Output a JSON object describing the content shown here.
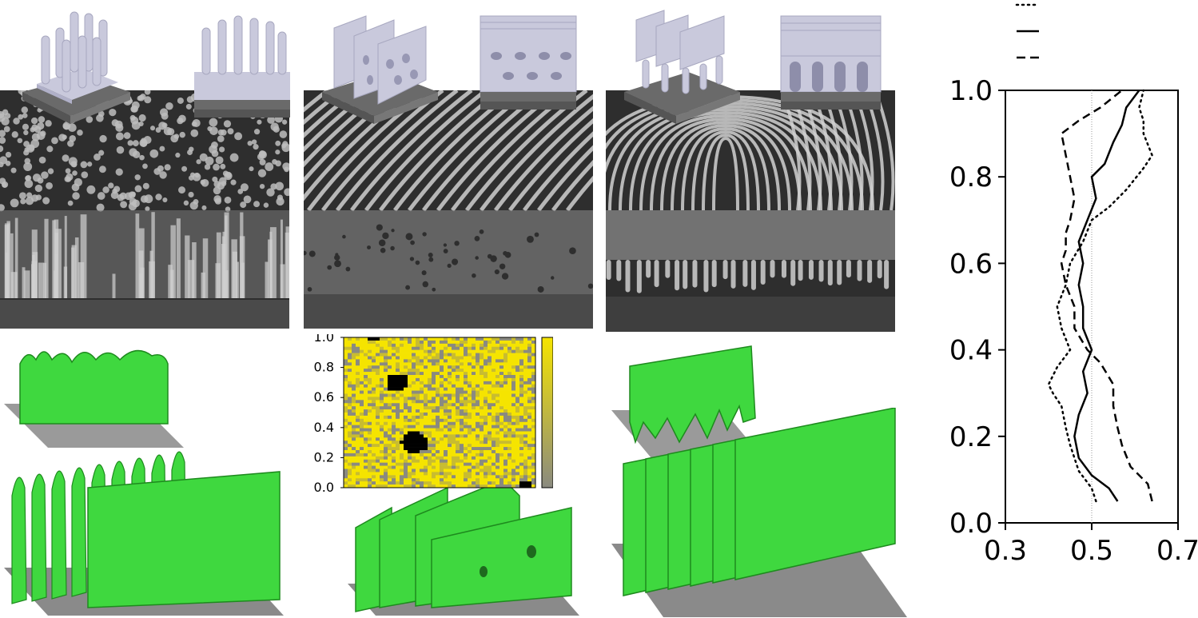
{
  "figure": {
    "panels": [
      {
        "name": "cylinders",
        "sem_texture": "dots"
      },
      {
        "name": "perforated-lamellae",
        "sem_texture": "stripes"
      },
      {
        "name": "lamellae-on-cylinders",
        "sem_texture": "fingerprint"
      }
    ],
    "colors": {
      "model_face": "#c9c9dc",
      "model_side": "#aeaec8",
      "substrate": "#6a6a6a",
      "sem_bg": "#303030",
      "sem_feature": "#c8c8c8",
      "sim_green": "#3fd83f",
      "heat_yellow": "#f5e400",
      "heat_gray": "#8a8a80",
      "heat_black": "#000000"
    }
  },
  "heatmap": {
    "ticks": [
      "0.0",
      "0.2",
      "0.4",
      "0.6",
      "0.8",
      "1.0"
    ]
  },
  "chart_data": {
    "type": "line",
    "xlim": [
      0.3,
      0.7
    ],
    "ylim": [
      0.0,
      1.0
    ],
    "xticks": [
      "0.3",
      "0.5",
      "0.7"
    ],
    "yticks": [
      "0.0",
      "0.2",
      "0.4",
      "0.6",
      "0.8",
      "1.0"
    ],
    "reference_x": 0.5,
    "legend": {
      "placement": "top",
      "styles": [
        "dotted",
        "solid",
        "dashed"
      ]
    },
    "series": [
      {
        "style": "dotted",
        "points": [
          [
            0.51,
            0.05
          ],
          [
            0.5,
            0.08
          ],
          [
            0.47,
            0.12
          ],
          [
            0.45,
            0.18
          ],
          [
            0.44,
            0.22
          ],
          [
            0.43,
            0.27
          ],
          [
            0.41,
            0.3
          ],
          [
            0.4,
            0.32
          ],
          [
            0.42,
            0.36
          ],
          [
            0.45,
            0.4
          ],
          [
            0.43,
            0.45
          ],
          [
            0.42,
            0.5
          ],
          [
            0.44,
            0.55
          ],
          [
            0.45,
            0.6
          ],
          [
            0.48,
            0.65
          ],
          [
            0.5,
            0.7
          ],
          [
            0.54,
            0.73
          ],
          [
            0.58,
            0.77
          ],
          [
            0.62,
            0.82
          ],
          [
            0.64,
            0.85
          ],
          [
            0.62,
            0.9
          ],
          [
            0.62,
            0.93
          ],
          [
            0.61,
            0.96
          ],
          [
            0.62,
            1.0
          ]
        ]
      },
      {
        "style": "solid",
        "points": [
          [
            0.56,
            0.05
          ],
          [
            0.54,
            0.08
          ],
          [
            0.5,
            0.11
          ],
          [
            0.47,
            0.15
          ],
          [
            0.46,
            0.2
          ],
          [
            0.47,
            0.25
          ],
          [
            0.49,
            0.3
          ],
          [
            0.48,
            0.35
          ],
          [
            0.5,
            0.4
          ],
          [
            0.48,
            0.45
          ],
          [
            0.48,
            0.5
          ],
          [
            0.47,
            0.55
          ],
          [
            0.48,
            0.6
          ],
          [
            0.47,
            0.65
          ],
          [
            0.49,
            0.7
          ],
          [
            0.51,
            0.75
          ],
          [
            0.5,
            0.8
          ],
          [
            0.53,
            0.83
          ],
          [
            0.55,
            0.88
          ],
          [
            0.57,
            0.92
          ],
          [
            0.58,
            0.96
          ],
          [
            0.61,
            1.0
          ]
        ]
      },
      {
        "style": "dashed",
        "points": [
          [
            0.64,
            0.05
          ],
          [
            0.63,
            0.09
          ],
          [
            0.59,
            0.13
          ],
          [
            0.57,
            0.18
          ],
          [
            0.56,
            0.22
          ],
          [
            0.55,
            0.27
          ],
          [
            0.55,
            0.32
          ],
          [
            0.52,
            0.37
          ],
          [
            0.49,
            0.4
          ],
          [
            0.46,
            0.45
          ],
          [
            0.46,
            0.5
          ],
          [
            0.44,
            0.55
          ],
          [
            0.43,
            0.6
          ],
          [
            0.44,
            0.63
          ],
          [
            0.44,
            0.67
          ],
          [
            0.45,
            0.7
          ],
          [
            0.46,
            0.75
          ],
          [
            0.45,
            0.8
          ],
          [
            0.44,
            0.85
          ],
          [
            0.43,
            0.9
          ],
          [
            0.47,
            0.93
          ],
          [
            0.52,
            0.96
          ],
          [
            0.57,
            1.0
          ]
        ]
      }
    ]
  }
}
